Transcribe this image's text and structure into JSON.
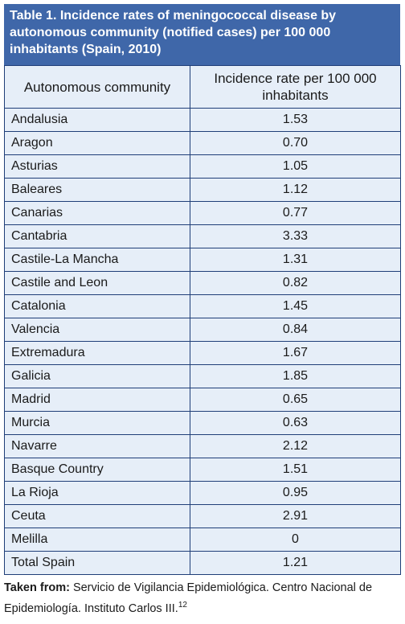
{
  "title": "Table 1. Incidence rates of meningococcal disease by autonomous community (notified cases) per 100 000 inhabitants (Spain, 2010)",
  "headers": {
    "community": "Autonomous community",
    "rate": "Incidence rate per 100 000 inhabitants"
  },
  "rows": [
    {
      "community": "Andalusia",
      "rate": "1.53"
    },
    {
      "community": "Aragon",
      "rate": "0.70"
    },
    {
      "community": "Asturias",
      "rate": "1.05"
    },
    {
      "community": "Baleares",
      "rate": "1.12"
    },
    {
      "community": "Canarias",
      "rate": "0.77"
    },
    {
      "community": "Cantabria",
      "rate": "3.33"
    },
    {
      "community": "Castile-La Mancha",
      "rate": "1.31"
    },
    {
      "community": "Castile and Leon",
      "rate": "0.82"
    },
    {
      "community": "Catalonia",
      "rate": "1.45"
    },
    {
      "community": "Valencia",
      "rate": "0.84"
    },
    {
      "community": "Extremadura",
      "rate": "1.67"
    },
    {
      "community": "Galicia",
      "rate": "1.85"
    },
    {
      "community": "Madrid",
      "rate": "0.65"
    },
    {
      "community": "Murcia",
      "rate": "0.63"
    },
    {
      "community": "Navarre",
      "rate": "2.12"
    },
    {
      "community": "Basque Country",
      "rate": "1.51"
    },
    {
      "community": "La Rioja",
      "rate": "0.95"
    },
    {
      "community": "Ceuta",
      "rate": "2.91"
    },
    {
      "community": "Melilla",
      "rate": "0"
    },
    {
      "community": "Total Spain",
      "rate": "1.21"
    }
  ],
  "source": {
    "label": "Taken from:",
    "text": " Servicio de Vigilancia Epidemiológica. Centro Nacional de Epidemiología. Instituto Carlos III.",
    "ref": "12"
  },
  "colors": {
    "title_bg": "#3f67a9",
    "table_bg": "#e6eef8",
    "border": "#1f3e78"
  }
}
